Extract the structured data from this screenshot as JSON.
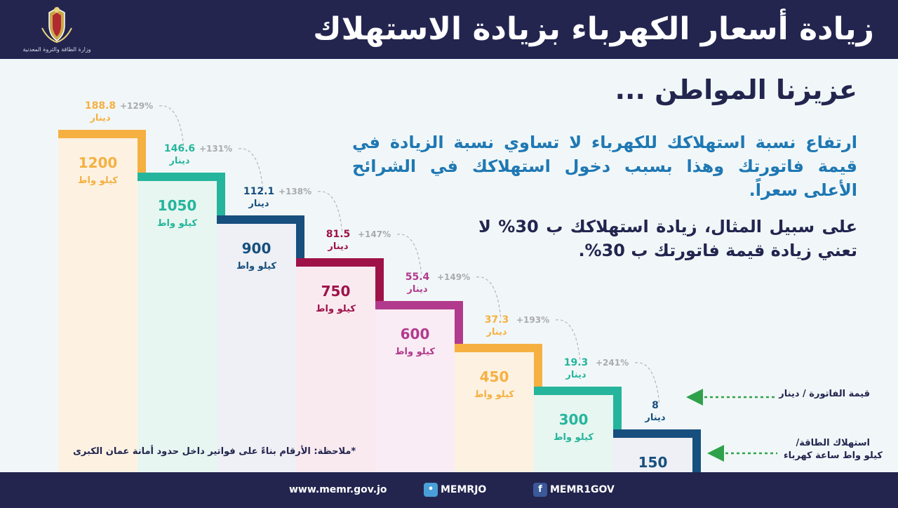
{
  "header": {
    "title": "زيادة أسعار الكهرباء بزيادة الاستهلاك",
    "logo_text": "وزارة الطاقة والثروة المعدنية"
  },
  "greeting": "عزيزنا المواطن ...",
  "paragraph1": "ارتفاع نسبة استهلاكك للكهرباء لا تساوي نسبة الزيادة في قيمة فاتورتك وهذا بسبب دخول استهلاكك في الشرائح الأعلى سعراً.",
  "paragraph2": "على سبيل المثال، زيادة استهلاكك ب 30% لا تعني زيادة قيمة فاتورتك ب 30%.",
  "note": "*ملاحظة: الأرقام بناءً على فواتير داخل حدود أمانة عمان الكبرى",
  "legend": {
    "bill": "قيمة الفاتورة / دينار",
    "consumption_line1": "استهلاك الطاقة/",
    "consumption_line2": "كيلو واط ساعة كهرباء"
  },
  "footer": {
    "website": "www.memr.gov.jo",
    "twitter": "MEMRJO",
    "facebook": "MEMR1GOV",
    "twitter_icon": "twitter-icon",
    "facebook_icon": "facebook-icon"
  },
  "chart_data": {
    "type": "bar",
    "categories": [
      "1200",
      "1050",
      "900",
      "750",
      "600",
      "450",
      "300",
      "150"
    ],
    "consumption_unit": "كيلو واط",
    "bill_unit": "دينار",
    "series": [
      {
        "values": [
          1200,
          1050,
          900,
          750,
          600,
          450,
          300,
          150
        ]
      },
      {
        "values": [
          188.8,
          146.6,
          112.1,
          81.5,
          55.4,
          37.3,
          19.3,
          8
        ]
      }
    ],
    "bill_labels": [
      "188.8",
      "146.6",
      "112.1",
      "81.5",
      "55.4",
      "37.3",
      "19.3",
      "8"
    ],
    "increase_labels": [
      "+129%",
      "+131%",
      "+138%",
      "+147%",
      "+149%",
      "+193%",
      "+241%",
      ""
    ],
    "colors": [
      "#f6b042",
      "#25b59c",
      "#174f7e",
      "#9e1248",
      "#b23a8d",
      "#f6b042",
      "#25b59c",
      "#174f7e"
    ],
    "fills": [
      "#fdf2e2",
      "#e7f6f0",
      "#eef0f5",
      "#f9eaf0",
      "#f9ecf4",
      "#fdf2e2",
      "#e7f6f0",
      "#eef0f5"
    ],
    "header_color": "#23254f",
    "arrow_color": "#2ea24a"
  }
}
